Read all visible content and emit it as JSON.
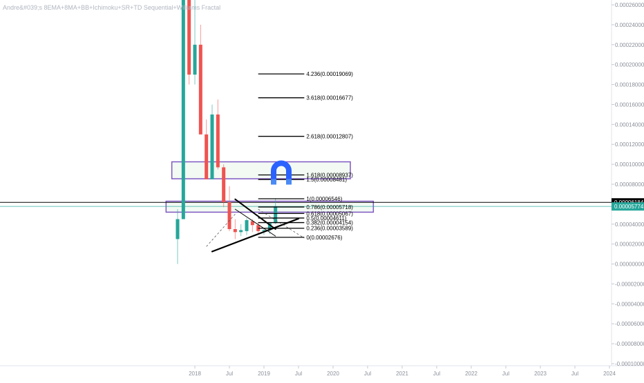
{
  "indicator_title": "Andre&#039;s 8EMA+8MA+BB+Ichimoku+SR+TD Sequential+Williams Fractal",
  "colors": {
    "up": "#26a69a",
    "down": "#ef5350",
    "box": "#7e57c2",
    "box_fill": "#e8f5e9",
    "icon": "#2962ff",
    "grid": "#f0f3fa",
    "axis_text": "#8a8f99",
    "price_badge": "#26a69a",
    "dark_badge": "#000000"
  },
  "chart_data": {
    "type": "candlestick",
    "y_axis": {
      "min": -0.00011,
      "max": 0.00027,
      "ticks": [
        "0.00026000",
        "0.00024000",
        "0.00022000",
        "0.00020000",
        "0.00018000",
        "0.00016000",
        "0.00014000",
        "0.00012000",
        "0.00010000",
        "0.00008000",
        "0.00006000",
        "0.00004000",
        "0.00002000",
        "0.00000000",
        "-0.00002000",
        "-0.00004000",
        "-0.00006000",
        "-0.00008000",
        "-0.00010000"
      ],
      "tick_values": [
        0.00026,
        0.00024,
        0.00022,
        0.0002,
        0.00018,
        0.00016,
        0.00014,
        0.00012,
        0.0001,
        8e-05,
        6e-05,
        4e-05,
        2e-05,
        0,
        -2e-05,
        -4e-05,
        -6e-05,
        -8e-05,
        -0.0001
      ]
    },
    "x_axis": {
      "min": "2017-10",
      "max": "2024-03",
      "ticks": [
        "2018",
        "Jul",
        "2019",
        "Jul",
        "2020",
        "Jul",
        "2021",
        "Jul",
        "2022",
        "Jul",
        "2023",
        "Jul",
        "2024"
      ],
      "tick_dates": [
        "2018-01",
        "2018-07",
        "2019-01",
        "2019-07",
        "2020-01",
        "2020-07",
        "2021-01",
        "2021-07",
        "2022-01",
        "2022-07",
        "2023-01",
        "2023-07",
        "2024-01"
      ]
    },
    "candles": [
      {
        "date": "2017-10",
        "open": 2.5e-05,
        "high": 5.5e-05,
        "low": 0.0,
        "close": 4.5e-05
      },
      {
        "date": "2017-11",
        "open": 4.5e-05,
        "high": 0.00027,
        "low": 4.5e-05,
        "close": 0.00027
      },
      {
        "date": "2017-12",
        "open": 0.00027,
        "high": 0.00027,
        "low": 0.00018,
        "close": 0.00019
      },
      {
        "date": "2018-01",
        "open": 0.00019,
        "high": 0.00027,
        "low": 0.00018,
        "close": 0.00022
      },
      {
        "date": "2018-02",
        "open": 0.00022,
        "high": 0.00024,
        "low": 0.00013,
        "close": 0.00013
      },
      {
        "date": "2018-03",
        "open": 0.00013,
        "high": 0.000145,
        "low": 8.5e-05,
        "close": 8.5e-05
      },
      {
        "date": "2018-04",
        "open": 8.5e-05,
        "high": 0.00016,
        "low": 8.5e-05,
        "close": 0.00015
      },
      {
        "date": "2018-05",
        "open": 0.00015,
        "high": 0.000165,
        "low": 9.5e-05,
        "close": 9.7e-05
      },
      {
        "date": "2018-06",
        "open": 9.7e-05,
        "high": 0.0001,
        "low": 5.7e-05,
        "close": 6.2e-05
      },
      {
        "date": "2018-07",
        "open": 6.2e-05,
        "high": 7.8e-05,
        "low": 3.3e-05,
        "close": 3.5e-05
      },
      {
        "date": "2018-08",
        "open": 3.5e-05,
        "high": 4.5e-05,
        "low": 2.5e-05,
        "close": 3.2e-05
      },
      {
        "date": "2018-09",
        "open": 3.2e-05,
        "high": 4e-05,
        "low": 2.8e-05,
        "close": 3.4e-05
      },
      {
        "date": "2018-10",
        "open": 3.3e-05,
        "high": 4.6e-05,
        "low": 2.9e-05,
        "close": 4.4e-05
      },
      {
        "date": "2018-11",
        "open": 4.3e-05,
        "high": 4.5e-05,
        "low": 3.2e-05,
        "close": 3.9e-05
      },
      {
        "date": "2018-12",
        "open": 3.9e-05,
        "high": 4.2e-05,
        "low": 3e-05,
        "close": 3.3e-05
      },
      {
        "date": "2019-01",
        "open": 3.3e-05,
        "high": 3.6e-05,
        "low": 2.9e-05,
        "close": 3.4e-05
      },
      {
        "date": "2019-02",
        "open": 3.4e-05,
        "high": 4.2e-05,
        "low": 3e-05,
        "close": 4.1e-05
      },
      {
        "date": "2019-03",
        "open": 4.1e-05,
        "high": 6.6e-05,
        "low": 4e-05,
        "close": 5.8e-05
      }
    ],
    "fib_levels": [
      {
        "label": "4.236(0.00019069)",
        "value": 0.00019069
      },
      {
        "label": "3.618(0.00016677)",
        "value": 0.00016677
      },
      {
        "label": "2.618(0.00012807)",
        "value": 0.00012807
      },
      {
        "label": "1.618(0.00008937)",
        "value": 8.937e-05
      },
      {
        "label": "1.5(0.00008481)",
        "value": 8.481e-05
      },
      {
        "label": "1(0.00006546)",
        "value": 6.546e-05
      },
      {
        "label": "0.786(0.00005718)",
        "value": 5.718e-05
      },
      {
        "label": "0.618(0.00005067)",
        "value": 5.067e-05
      },
      {
        "label": "0.5(0.00004611)",
        "value": 4.611e-05
      },
      {
        "label": "0.382(0.00004154)",
        "value": 4.154e-05
      },
      {
        "label": "0.236(0.00003589)",
        "value": 3.589e-05
      },
      {
        "label": "0(0.00002676)",
        "value": 2.676e-05
      }
    ],
    "fib_start": "2018-12",
    "fib_end": "2019-08",
    "zones": [
      {
        "from": "2017-09",
        "to": "2020-04",
        "low": 8.55e-05,
        "high": 0.0001025
      },
      {
        "from": "2017-08",
        "to": "2020-08",
        "low": 5.2e-05,
        "high": 6.3e-05
      }
    ],
    "trend_lines": [
      {
        "x1": "2018-04",
        "y1": 1.25e-05,
        "x2": "2019-07",
        "y2": 4.55e-05,
        "width": 2.2
      },
      {
        "x1": "2018-08",
        "y1": 6.5e-05,
        "x2": "2019-03",
        "y2": 3.5e-05,
        "width": 2
      },
      {
        "x1": "2018-08",
        "y1": 5.5e-05,
        "x2": "2019-03",
        "y2": 2.8e-05,
        "width": 1
      }
    ],
    "dashed_lines": [
      {
        "x1": "2018-03",
        "y1": 1.75e-05,
        "x2": "2018-08",
        "y2": 5e-05
      },
      {
        "x1": "2018-12",
        "y1": 5.5e-05,
        "x2": "2019-08",
        "y2": 2.6e-05
      }
    ],
    "horizontal_lines": [
      {
        "value": 6.184e-05,
        "color": "#000000"
      },
      {
        "value": 5.774e-05,
        "color": "#26a69a"
      }
    ],
    "price_badges": [
      {
        "label": "0.00006184",
        "value": 6.184e-05,
        "color": "#000000"
      },
      {
        "label": "0.00005774",
        "value": 5.774e-05,
        "color": "#26a69a"
      }
    ],
    "magnet_icon": {
      "date": "2019-04",
      "value": 9.35e-05
    }
  }
}
